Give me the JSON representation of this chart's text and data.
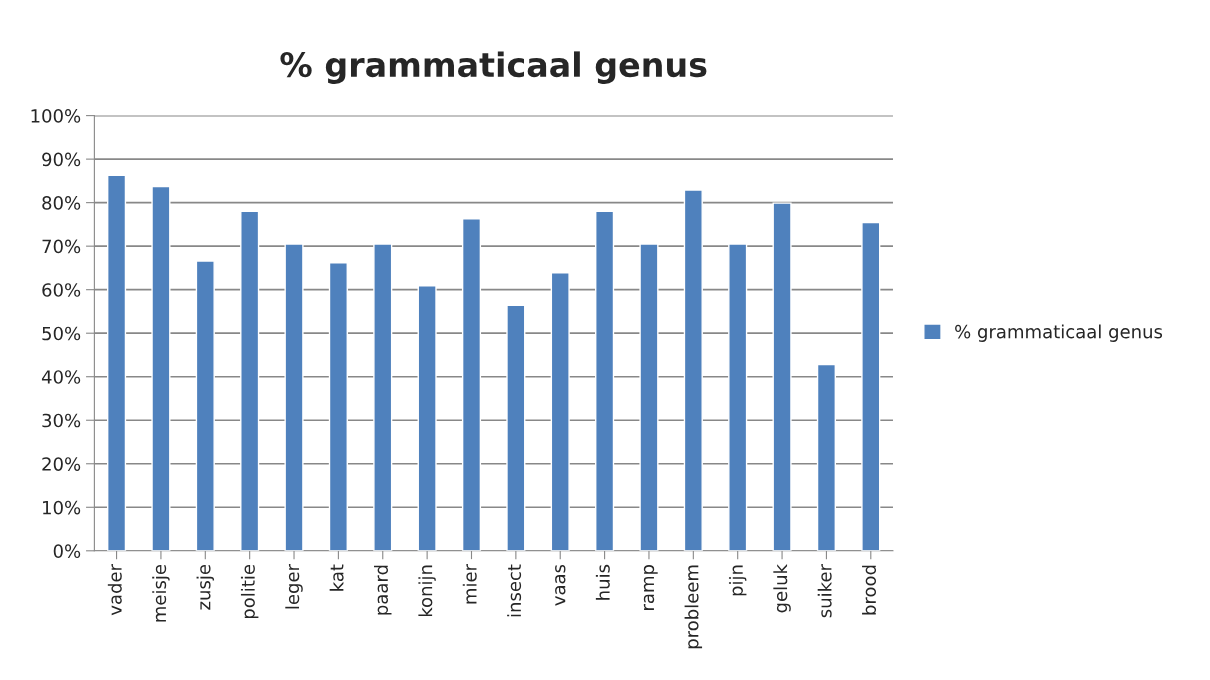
{
  "chart_data": {
    "type": "bar",
    "title": "% grammaticaal genus",
    "categories": [
      "vader",
      "meisje",
      "zusje",
      "politie",
      "leger",
      "kat",
      "paard",
      "konijn",
      "mier",
      "insect",
      "vaas",
      "huis",
      "ramp",
      "probleem",
      "pijn",
      "geluk",
      "suiker",
      "brood"
    ],
    "series": [
      {
        "name": "% grammaticaal genus",
        "color": "#4f81bd",
        "values": [
          86.3,
          83.7,
          66.6,
          78.0,
          70.5,
          66.2,
          70.5,
          60.9,
          76.3,
          56.4,
          63.9,
          78.0,
          70.5,
          82.9,
          70.5,
          79.9,
          42.8,
          75.4
        ]
      }
    ],
    "ylim": [
      0,
      100
    ],
    "yticks": [
      {
        "value": 0,
        "label": "0%"
      },
      {
        "value": 10,
        "label": "10%"
      },
      {
        "value": 20,
        "label": "20%"
      },
      {
        "value": 30,
        "label": "30%"
      },
      {
        "value": 40,
        "label": "40%"
      },
      {
        "value": 50,
        "label": "50%"
      },
      {
        "value": 60,
        "label": "60%"
      },
      {
        "value": 70,
        "label": "70%"
      },
      {
        "value": 80,
        "label": "80%"
      },
      {
        "value": 90,
        "label": "90%"
      },
      {
        "value": 100,
        "label": "100%"
      }
    ],
    "grid": "y",
    "legend": "right"
  }
}
